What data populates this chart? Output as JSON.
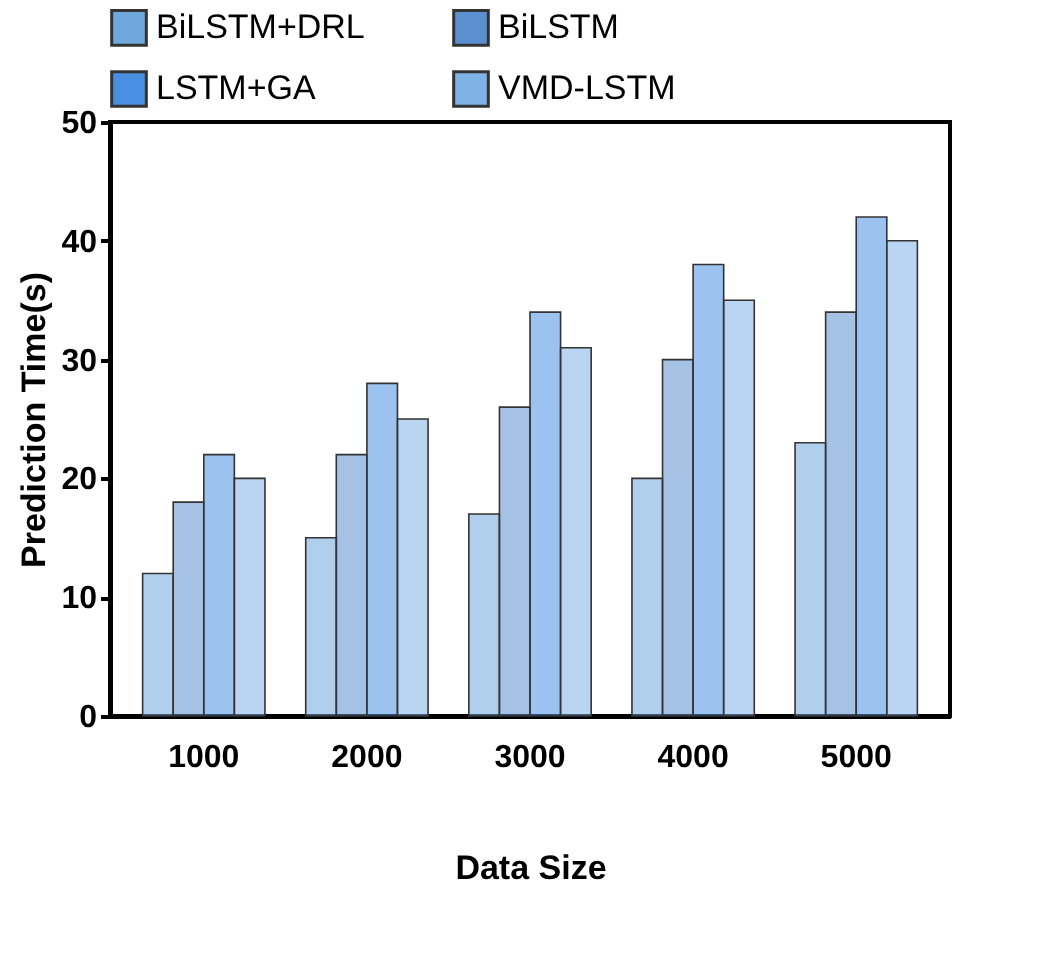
{
  "chart_data": {
    "type": "bar",
    "xlabel": "Data Size",
    "ylabel": "Prediction Time(s)",
    "categories": [
      "1000",
      "2000",
      "3000",
      "4000",
      "5000"
    ],
    "series": [
      {
        "name": "BiLSTM+DRL",
        "color": "#6fa8dc",
        "values": [
          12,
          15,
          17,
          20,
          23
        ]
      },
      {
        "name": "BiLSTM",
        "color": "#5b8fd0",
        "values": [
          18,
          22,
          26,
          30,
          34
        ]
      },
      {
        "name": "LSTM+GA",
        "color": "#4a90e2",
        "values": [
          22,
          28,
          34,
          38,
          42
        ]
      },
      {
        "name": "VMD-LSTM",
        "color": "#7fb3e6",
        "values": [
          20,
          25,
          31,
          35,
          40
        ]
      }
    ],
    "ylim": [
      0,
      50
    ],
    "yticks": [
      0,
      10,
      20,
      30,
      40,
      50
    ],
    "grid": false,
    "legend": "top"
  }
}
